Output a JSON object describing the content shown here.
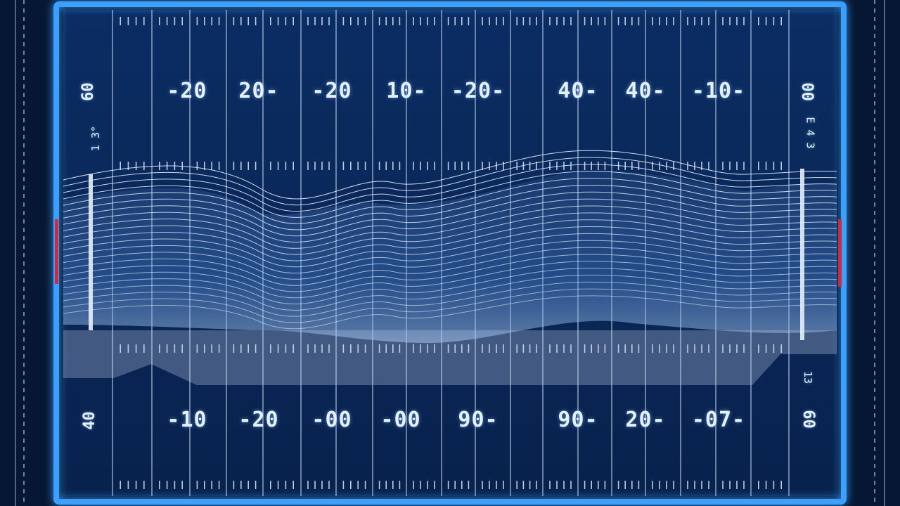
{
  "field": {
    "colors": {
      "background": "#061733",
      "field": "#0a2a5c",
      "glow": "#3aa0ff",
      "lines": "#b9cbe6",
      "accent": "#d02a3a"
    },
    "top_numbers": [
      "-20",
      "20-",
      "-20",
      "10-",
      "-20-",
      "40-",
      "40-",
      "-10-"
    ],
    "bottom_numbers": [
      "-10",
      "-20",
      "-00",
      "-00",
      "90-",
      "90-",
      "20-",
      "-07-"
    ],
    "side_labels": {
      "left_top": "60",
      "left_mid": "1 3°",
      "left_bottom": "40",
      "right_top": "00",
      "right_mid": "E 4 3",
      "right_bottom": "60",
      "right_lower_mid": "13"
    }
  }
}
